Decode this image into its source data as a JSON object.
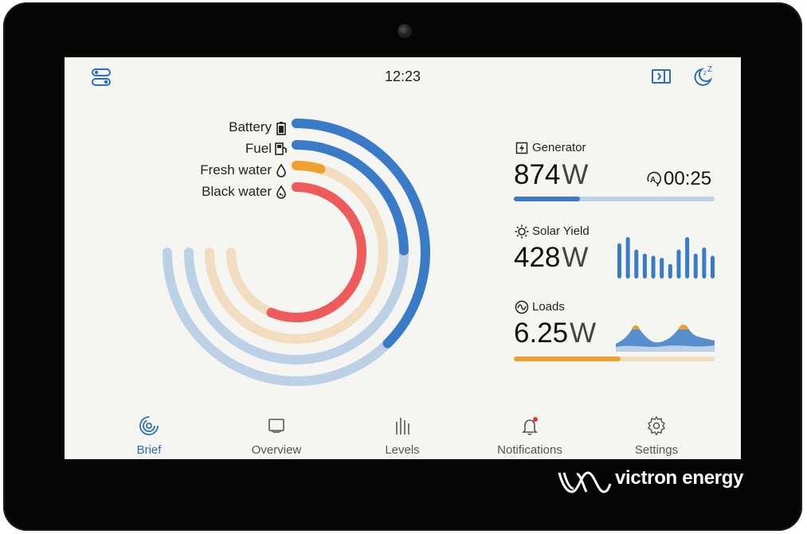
{
  "header": {
    "time": "12:23"
  },
  "gauges": [
    {
      "label": "Battery",
      "icon": "battery-icon",
      "color": "#3a7bc8",
      "level": 0.5
    },
    {
      "label": "Fuel",
      "icon": "fuel-icon",
      "color": "#3a7bc8",
      "level": 0.33
    },
    {
      "label": "Fresh water",
      "icon": "droplet-icon",
      "color": "#f0a030",
      "level": 0.06
    },
    {
      "label": "Black water",
      "icon": "droplet-waste-icon",
      "color": "#ef5a5a",
      "level": 0.75
    }
  ],
  "generator": {
    "label": "Generator",
    "value": "874",
    "unit": "W",
    "runtime": "00:25",
    "bar_level": 0.33,
    "bar_color": "#3a7bc8"
  },
  "solar": {
    "label": "Solar Yield",
    "value": "428",
    "unit": "W",
    "bar_values": [
      0.85,
      1.0,
      0.7,
      0.6,
      0.55,
      0.5,
      0.35,
      0.7,
      1.0,
      0.6,
      0.75,
      0.55
    ]
  },
  "loads": {
    "label": "Loads",
    "value": "6.25",
    "unit": "W",
    "bar_level": 0.53,
    "bar_color": "#f0a030"
  },
  "nav": {
    "items": [
      {
        "label": "Brief",
        "icon": "brief-icon"
      },
      {
        "label": "Overview",
        "icon": "overview-icon"
      },
      {
        "label": "Levels",
        "icon": "levels-icon"
      },
      {
        "label": "Notifications",
        "icon": "bell-icon"
      },
      {
        "label": "Settings",
        "icon": "gear-icon"
      }
    ]
  },
  "brand": {
    "name": "victron energy"
  },
  "colors": {
    "accent": "#2a6ebd",
    "blue": "#3a7bc8",
    "orange": "#f0a030",
    "red": "#ef5a5a",
    "track_blue": "#bcd0e6",
    "track_orange": "#f2ddc0"
  }
}
